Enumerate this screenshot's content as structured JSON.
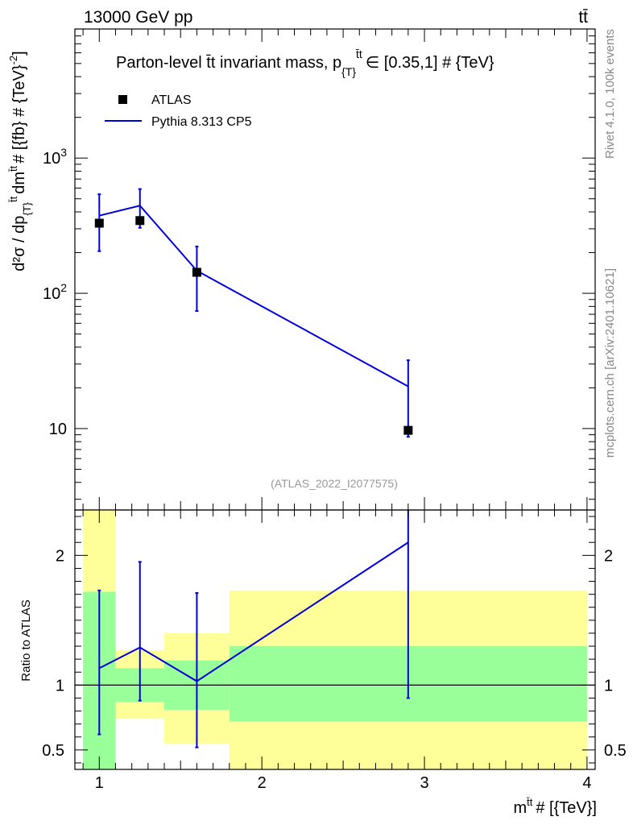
{
  "header": {
    "left": "13000 GeV pp",
    "right": "tt̄"
  },
  "side_labels": {
    "rivet": "Rivet 4.1.0,  100k events",
    "mcplots": "mcplots.cern.ch [arXiv:2401.10621]"
  },
  "chart_data": [
    {
      "type": "line",
      "panel": "main",
      "title": "Parton-level t̄t invariant mass, p",
      "title_sub": "{T}",
      "title_sup": "t̄t",
      "title_tail": "∈ [0.35,1] # {TeV}",
      "analysis_id": "(ATLAS_2022_I2077575)",
      "ylabel": "d²σ / dp",
      "ylabel_rest": "dm",
      "ylabel_units": "# [{fb} # {TeV}",
      "ylabel_unit_exp": "-2",
      "yscale": "log",
      "ylim": [
        2.5,
        9000
      ],
      "xlim": [
        0.85,
        4.05
      ],
      "ytick_labels": [
        "10",
        "10",
        "10"
      ],
      "ytick_exps": [
        "",
        "2",
        "3"
      ],
      "ytick_values": [
        10,
        100,
        1000
      ],
      "legend": [
        {
          "name": "ATLAS",
          "marker": "square",
          "color": "#000000"
        },
        {
          "name": "Pythia 8.313 CP5",
          "marker": "line",
          "color": "#0000dd"
        }
      ],
      "series": [
        {
          "name": "ATLAS",
          "x": [
            1.0,
            1.25,
            1.6,
            2.9
          ],
          "y": [
            330,
            345,
            143,
            9.7
          ]
        },
        {
          "name": "Pythia 8.313 CP5",
          "x": [
            1.0,
            1.25,
            1.6,
            2.9
          ],
          "y": [
            375,
            445,
            147,
            20.5
          ],
          "yerr_low": [
            205,
            305,
            74,
            8.7
          ],
          "yerr_high": [
            540,
            590,
            222,
            32
          ]
        }
      ]
    },
    {
      "type": "line",
      "panel": "ratio",
      "ylabel": "Ratio to ATLAS",
      "xlabel": "m",
      "xlabel_sup": "t̄t",
      "xlabel_tail": "# [{TeV}]",
      "ylim": [
        0.35,
        2.35
      ],
      "xlim": [
        0.85,
        4.05
      ],
      "xtick_labels": [
        "1",
        "2",
        "3",
        "4"
      ],
      "xtick_values": [
        1,
        2,
        3,
        4
      ],
      "ytick_labels": [
        "0.5",
        "1",
        "2"
      ],
      "ytick_values": [
        0.5,
        1,
        2
      ],
      "bands": [
        {
          "x0": 0.9,
          "x1": 1.1,
          "stat_lo": 0.35,
          "stat_hi": 1.72,
          "tot_lo": 0.35,
          "tot_hi": 2.35
        },
        {
          "x0": 1.1,
          "x1": 1.4,
          "stat_lo": 0.87,
          "stat_hi": 1.13,
          "tot_lo": 0.74,
          "tot_hi": 1.27
        },
        {
          "x0": 1.4,
          "x1": 1.8,
          "stat_lo": 0.81,
          "stat_hi": 1.19,
          "tot_lo": 0.55,
          "tot_hi": 1.4
        },
        {
          "x0": 1.8,
          "x1": 4.0,
          "stat_lo": 0.72,
          "stat_hi": 1.3,
          "tot_lo": 0.35,
          "tot_hi": 1.73
        }
      ],
      "series": [
        {
          "name": "Pythia 8.313 CP5",
          "x": [
            1.0,
            1.25,
            1.6,
            2.9
          ],
          "y": [
            1.13,
            1.29,
            1.03,
            2.1
          ],
          "yerr_low": [
            0.62,
            0.88,
            0.52,
            0.9
          ],
          "yerr_high": [
            1.73,
            1.95,
            1.71,
            2.35
          ]
        }
      ]
    }
  ],
  "colors": {
    "mc_line": "#0000dd",
    "data_marker": "#000000",
    "stat_band": "#99ff99",
    "total_band": "#ffff99"
  }
}
